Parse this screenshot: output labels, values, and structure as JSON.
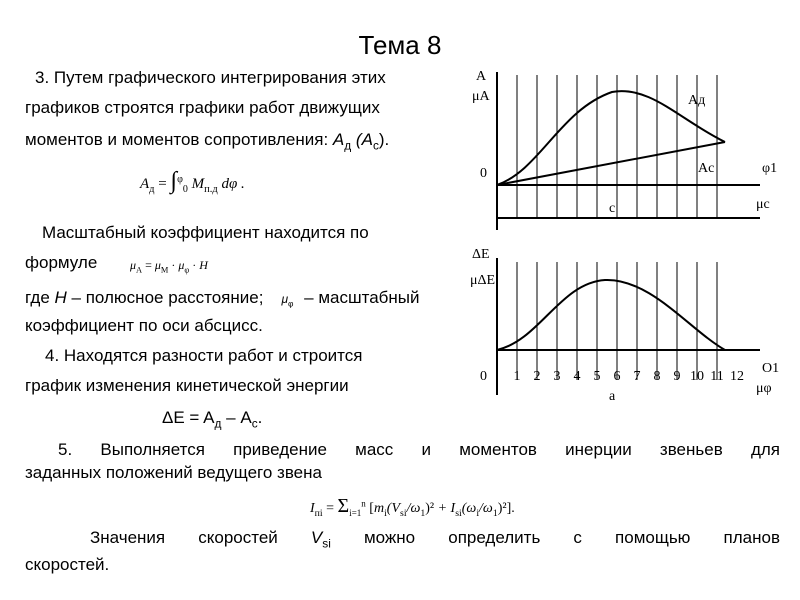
{
  "header": {
    "title": "Тема 8"
  },
  "text": {
    "l1": "3. Путем графического интегрирования этих",
    "l2": "графиков строятся графики работ движущих",
    "l3": [
      "моментов и моментов сопротивления: ",
      "A",
      "д",
      " (A",
      "с",
      ")."
    ],
    "f1": [
      "A",
      "д",
      "=",
      "∫",
      "φ",
      "0",
      "M",
      "п.д",
      "dφ ."
    ],
    "l4": "Масштабный коэффициент находится по",
    "l5": "формуле",
    "f2": [
      "μ",
      "A",
      "=",
      "μ",
      "M",
      "·",
      "μ",
      "φ",
      "·",
      "H"
    ],
    "l6": [
      "где ",
      "H",
      " – полюсное расстояние;",
      "μ",
      "φ",
      " – масштабный"
    ],
    "l7": "коэффициент по оси абсцисс.",
    "l8": "4. Находятся разности работ и строится",
    "l9": "график изменения кинетической энергии",
    "l10": [
      "ΔE = A",
      "д",
      " – A",
      "с",
      "."
    ],
    "l11": "5. Выполняется приведение масс и моментов инерции звеньев для",
    "l12": "заданных положений  ведущего звена",
    "f3": [
      "I",
      "пi",
      "=",
      "Σ",
      "i=1",
      "n",
      "m",
      "i",
      "(V",
      "si",
      "/ω",
      "1",
      ")²",
      "+ I",
      "si",
      "(ω",
      "i",
      "/ω",
      "1",
      ")²"
    ],
    "l13": [
      "Значения скоростей ",
      "V",
      "si",
      " можно определить с помощью планов"
    ],
    "l14": "скоростей."
  },
  "diagram_top": {
    "y_axis": "A",
    "y_scale": "μA",
    "curve_1": "Aд",
    "curve_2": "Aс",
    "origin": "0",
    "x_axis": "φ1",
    "x_scale": "μc",
    "point": "c"
  },
  "diagram_bottom": {
    "y_axis": "ΔE",
    "y_scale": "μΔE",
    "origin": "0",
    "positions": [
      "1",
      "2",
      "3",
      "4",
      "5",
      "6",
      "7",
      "8",
      "9",
      "10",
      "11",
      "12"
    ],
    "x_axis": "O1",
    "x_scale": "μφ",
    "point": "a"
  }
}
